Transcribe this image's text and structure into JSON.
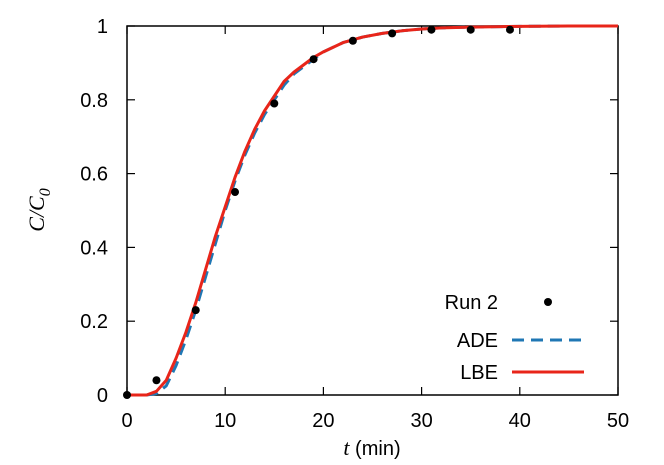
{
  "chart_data": {
    "type": "line",
    "xlabel_var": "t",
    "xlabel_unit": " (min)",
    "ylabel_main": "C/C",
    "ylabel_sub": "0",
    "xlim": [
      0,
      50
    ],
    "ylim": [
      0,
      1
    ],
    "xticks": [
      "0",
      "10",
      "20",
      "30",
      "40",
      "50"
    ],
    "yticks": [
      "0",
      "0.2",
      "0.4",
      "0.6",
      "0.8",
      "1"
    ],
    "grid": false,
    "legend_position": "bottom-right",
    "series": [
      {
        "name": "Run 2",
        "style": "points",
        "color": "#000000",
        "x": [
          0,
          3,
          7,
          11,
          15,
          19,
          23,
          27,
          31,
          35,
          39
        ],
        "y": [
          0.0,
          0.04,
          0.23,
          0.55,
          0.79,
          0.91,
          0.96,
          0.98,
          0.99,
          0.99,
          0.99
        ]
      },
      {
        "name": "ADE",
        "style": "dashed",
        "color": "#1f77b4",
        "x": [
          0,
          1,
          2,
          3,
          4,
          5,
          6,
          7,
          8,
          9,
          10,
          11,
          12,
          13,
          14,
          15,
          16,
          17,
          18,
          19,
          20,
          22,
          24,
          26,
          28,
          30,
          32,
          35,
          40,
          45,
          50
        ],
        "y": [
          0.0,
          0.0,
          0.0,
          0.004,
          0.025,
          0.08,
          0.15,
          0.23,
          0.32,
          0.41,
          0.5,
          0.58,
          0.65,
          0.71,
          0.76,
          0.8,
          0.84,
          0.87,
          0.89,
          0.91,
          0.93,
          0.955,
          0.97,
          0.98,
          0.987,
          0.992,
          0.995,
          0.997,
          0.999,
          1.0,
          1.0
        ]
      },
      {
        "name": "LBE",
        "style": "solid",
        "color": "#e8251a",
        "x": [
          0,
          1,
          2,
          3,
          4,
          5,
          6,
          7,
          8,
          9,
          10,
          11,
          12,
          13,
          14,
          15,
          16,
          17,
          18,
          19,
          20,
          22,
          24,
          26,
          28,
          30,
          32,
          35,
          40,
          45,
          50
        ],
        "y": [
          0.0,
          0.0,
          0.0,
          0.01,
          0.04,
          0.1,
          0.17,
          0.25,
          0.34,
          0.43,
          0.51,
          0.59,
          0.66,
          0.72,
          0.77,
          0.81,
          0.85,
          0.875,
          0.895,
          0.915,
          0.93,
          0.955,
          0.97,
          0.98,
          0.987,
          0.992,
          0.995,
          0.997,
          0.999,
          1.0,
          1.0
        ]
      }
    ]
  }
}
